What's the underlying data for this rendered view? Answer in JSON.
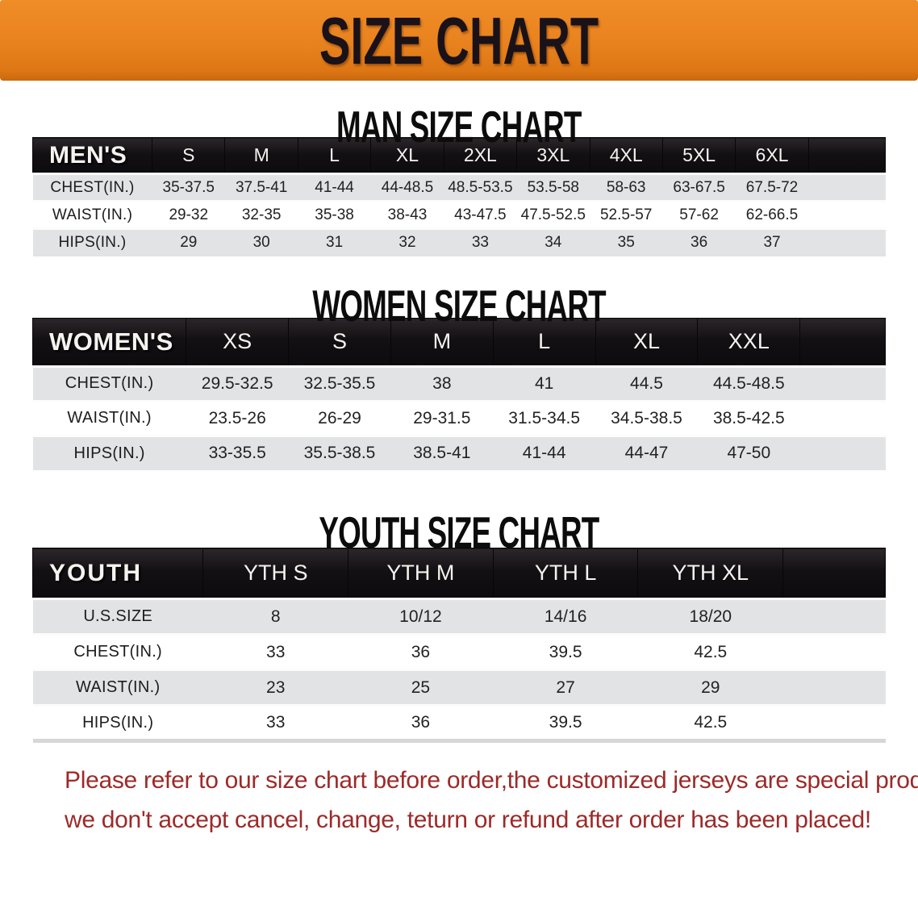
{
  "banner": {
    "title": "SIZE CHART",
    "bg_color": "#E8821E",
    "text_color": "#191218"
  },
  "sections": [
    {
      "heading": "MAN SIZE CHART",
      "corner_label": "MEN'S",
      "columns": [
        "S",
        "M",
        "L",
        "XL",
        "2XL",
        "3XL",
        "4XL",
        "5XL",
        "6XL"
      ],
      "rows": [
        {
          "label": "CHEST(IN.)",
          "values": [
            "35-37.5",
            "37.5-41",
            "41-44",
            "44-48.5",
            "48.5-53.5",
            "53.5-58",
            "58-63",
            "63-67.5",
            "67.5-72"
          ]
        },
        {
          "label": "WAIST(IN.)",
          "values": [
            "29-32",
            "32-35",
            "35-38",
            "38-43",
            "43-47.5",
            "47.5-52.5",
            "52.5-57",
            "57-62",
            "62-66.5"
          ]
        },
        {
          "label": "HIPS(IN.)",
          "values": [
            "29",
            "30",
            "31",
            "32",
            "33",
            "34",
            "35",
            "36",
            "37"
          ]
        }
      ]
    },
    {
      "heading": "WOMEN SIZE CHART",
      "corner_label": "WOMEN'S",
      "columns": [
        "XS",
        "S",
        "M",
        "L",
        "XL",
        "XXL"
      ],
      "rows": [
        {
          "label": "CHEST(IN.)",
          "values": [
            "29.5-32.5",
            "32.5-35.5",
            "38",
            "41",
            "44.5",
            "44.5-48.5"
          ]
        },
        {
          "label": "WAIST(IN.)",
          "values": [
            "23.5-26",
            "26-29",
            "29-31.5",
            "31.5-34.5",
            "34.5-38.5",
            "38.5-42.5"
          ]
        },
        {
          "label": "HIPS(IN.)",
          "values": [
            "33-35.5",
            "35.5-38.5",
            "38.5-41",
            "41-44",
            "44-47",
            "47-50"
          ]
        }
      ]
    },
    {
      "heading": "YOUTH SIZE CHART",
      "corner_label": "YOUTH",
      "columns": [
        "YTH S",
        "YTH M",
        "YTH L",
        "YTH XL"
      ],
      "rows": [
        {
          "label": "U.S.SIZE",
          "values": [
            "8",
            "10/12",
            "14/16",
            "18/20"
          ]
        },
        {
          "label": "CHEST(IN.)",
          "values": [
            "33",
            "36",
            "39.5",
            "42.5"
          ]
        },
        {
          "label": "WAIST(IN.)",
          "values": [
            "23",
            "25",
            "27",
            "29"
          ]
        },
        {
          "label": "HIPS(IN.)",
          "values": [
            "33",
            "36",
            "39.5",
            "42.5"
          ]
        }
      ]
    }
  ],
  "footer": {
    "line1": "Please refer to our size chart before order,the customized jerseys are special products,",
    "line2": "we don't accept cancel, change, teturn or refund after order has been placed!",
    "text_color": "#9C2A28"
  }
}
